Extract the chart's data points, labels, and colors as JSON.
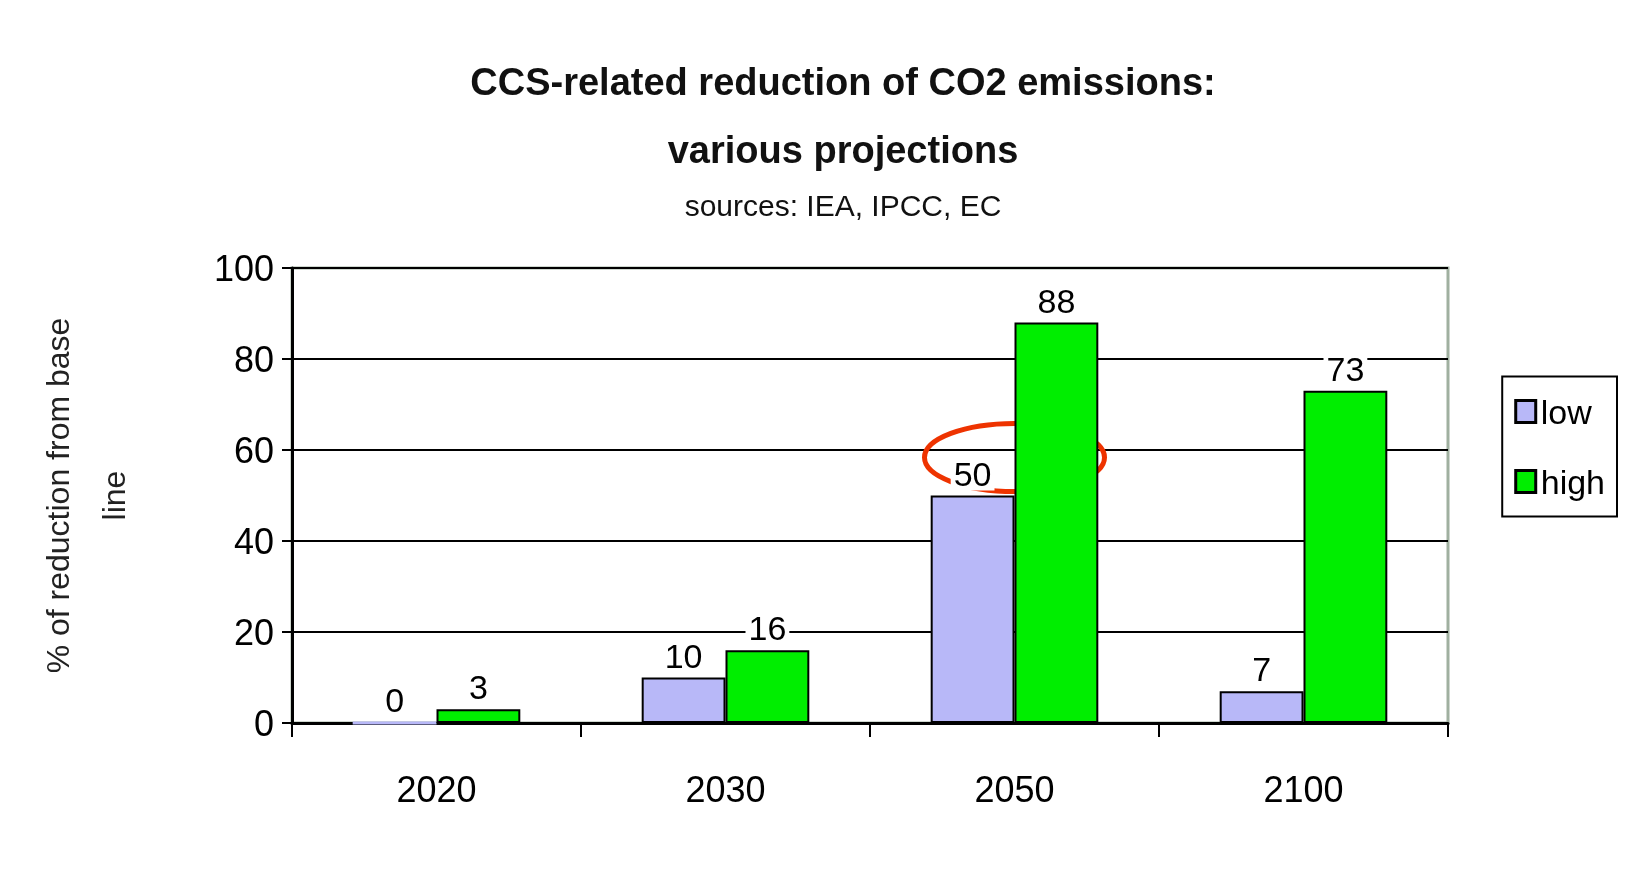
{
  "chart_data": {
    "type": "bar",
    "title": "CCS-related reduction of CO2 emissions:\nvarious projections",
    "subtitle": "sources: IEA, IPCC, EC",
    "ylabel": "% of reduction from base\nline",
    "categories": [
      "2020",
      "2030",
      "2050",
      "2100"
    ],
    "series": [
      {
        "name": "low",
        "color": "#b8b8f8",
        "values": [
          0,
          10,
          50,
          7
        ]
      },
      {
        "name": "high",
        "color": "#00ee00",
        "values": [
          3,
          16,
          88,
          73
        ]
      }
    ],
    "ylim": [
      0,
      100
    ],
    "yticks": [
      0,
      20,
      40,
      60,
      80,
      100
    ],
    "grid": "y",
    "legend": "right",
    "data_labels": true
  }
}
